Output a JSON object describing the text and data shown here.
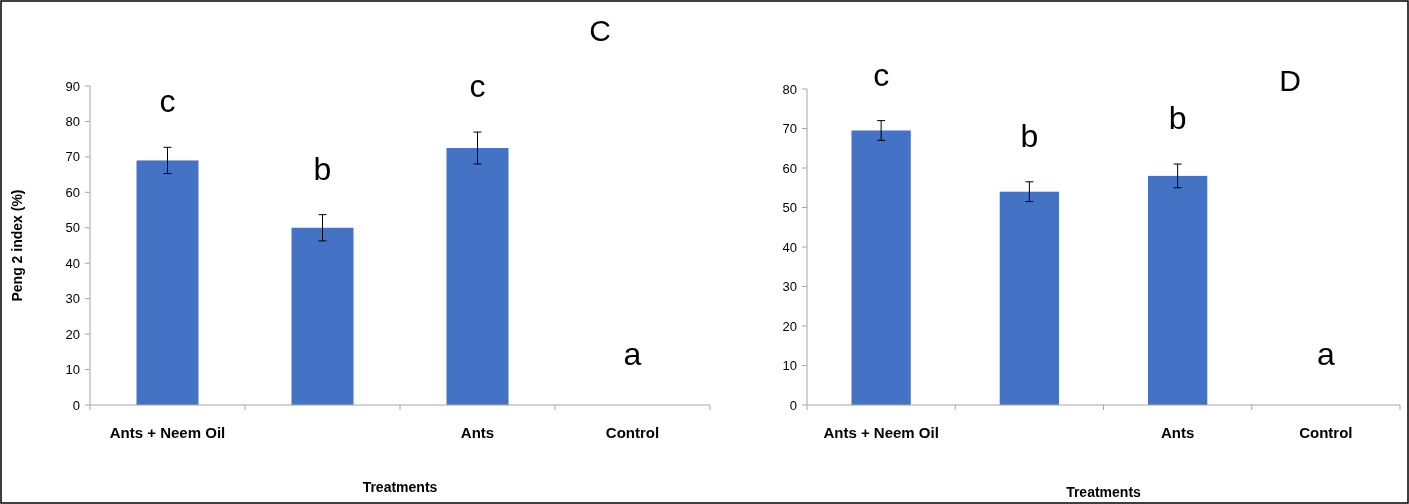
{
  "chart_data": [
    {
      "type": "bar",
      "title": "C",
      "ylabel": "Peng 2 index (%)",
      "xlabel": "Treatments",
      "categories": [
        "Ants + Neem Oil",
        null,
        "Ants",
        "Control"
      ],
      "values": [
        69,
        50,
        72.5,
        0
      ],
      "errors": [
        3.7,
        3.7,
        4.5,
        null
      ],
      "color": "#4472c4",
      "ylim": [
        0,
        90
      ],
      "yticks": [
        0,
        10,
        20,
        30,
        40,
        50,
        60,
        70,
        80,
        90
      ],
      "grid": false,
      "annotations": [
        "c",
        "b",
        "c",
        "a"
      ]
    },
    {
      "type": "bar",
      "title": "D",
      "xlabel": "Treatments",
      "categories": [
        "Ants + Neem Oil",
        null,
        "Ants",
        "Control"
      ],
      "values": [
        69.5,
        54,
        58,
        0
      ],
      "errors": [
        2.5,
        2.5,
        3,
        null
      ],
      "color": "#4472c4",
      "ylim": [
        0,
        80
      ],
      "yticks": [
        0,
        10,
        20,
        30,
        40,
        50,
        60,
        70,
        80
      ],
      "grid": false,
      "annotations": [
        "c",
        "b",
        "b",
        "a"
      ]
    }
  ]
}
